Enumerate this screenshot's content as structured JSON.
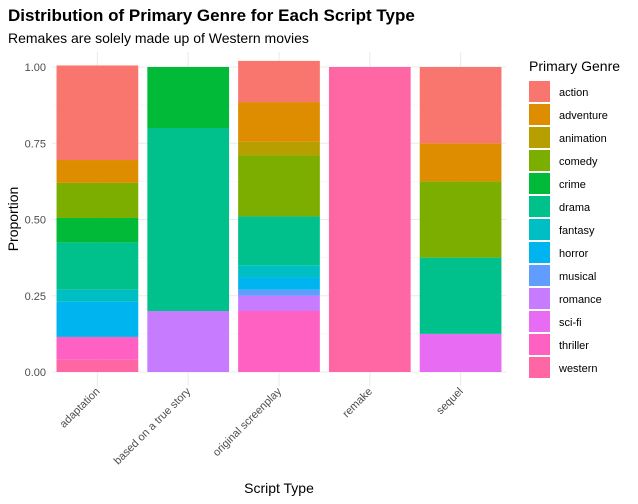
{
  "chart_data": {
    "type": "bar",
    "stacked": true,
    "title": "Distribution of Primary Genre for Each Script Type",
    "subtitle": "Remakes are solely made up of Western movies",
    "xlabel": "Script Type",
    "ylabel": "Proportion",
    "ylim": [
      0,
      1
    ],
    "yticks": [
      "0.00",
      "0.25",
      "0.50",
      "0.75",
      "1.00"
    ],
    "categories": [
      "adaptation",
      "based on a true story",
      "original screenplay",
      "remake",
      "sequel"
    ],
    "legend_title": "Primary Genre",
    "legend_position": "right",
    "grid": true,
    "series": [
      {
        "name": "action",
        "color": "#F8766D",
        "values": [
          0.31,
          0.0,
          0.135,
          0.0,
          0.25
        ]
      },
      {
        "name": "adventure",
        "color": "#DE8C00",
        "values": [
          0.075,
          0.0,
          0.13,
          0.0,
          0.125
        ]
      },
      {
        "name": "animation",
        "color": "#B79F00",
        "values": [
          0.0,
          0.0,
          0.045,
          0.0,
          0.0
        ]
      },
      {
        "name": "comedy",
        "color": "#7CAE00",
        "values": [
          0.115,
          0.0,
          0.2,
          0.0,
          0.25
        ]
      },
      {
        "name": "crime",
        "color": "#00BA38",
        "values": [
          0.08,
          0.2,
          0.0,
          0.0,
          0.0
        ]
      },
      {
        "name": "drama",
        "color": "#00C08B",
        "values": [
          0.155,
          0.6,
          0.16,
          0.0,
          0.25
        ]
      },
      {
        "name": "fantasy",
        "color": "#00BFC4",
        "values": [
          0.04,
          0.0,
          0.04,
          0.0,
          0.0
        ]
      },
      {
        "name": "horror",
        "color": "#00B4F0",
        "values": [
          0.115,
          0.0,
          0.04,
          0.0,
          0.0
        ]
      },
      {
        "name": "musical",
        "color": "#619CFF",
        "values": [
          0.0,
          0.0,
          0.02,
          0.0,
          0.0
        ]
      },
      {
        "name": "romance",
        "color": "#C77CFF",
        "values": [
          0.0,
          0.2,
          0.05,
          0.0,
          0.0
        ]
      },
      {
        "name": "sci-fi",
        "color": "#E76BF3",
        "values": [
          0.0,
          0.0,
          0.0,
          0.0,
          0.125
        ]
      },
      {
        "name": "thriller",
        "color": "#FF61C3",
        "values": [
          0.075,
          0.0,
          0.2,
          0.0,
          0.0
        ]
      },
      {
        "name": "western",
        "color": "#FF67A4",
        "values": [
          0.04,
          0.0,
          0.0,
          1.0,
          0.0
        ]
      }
    ]
  }
}
